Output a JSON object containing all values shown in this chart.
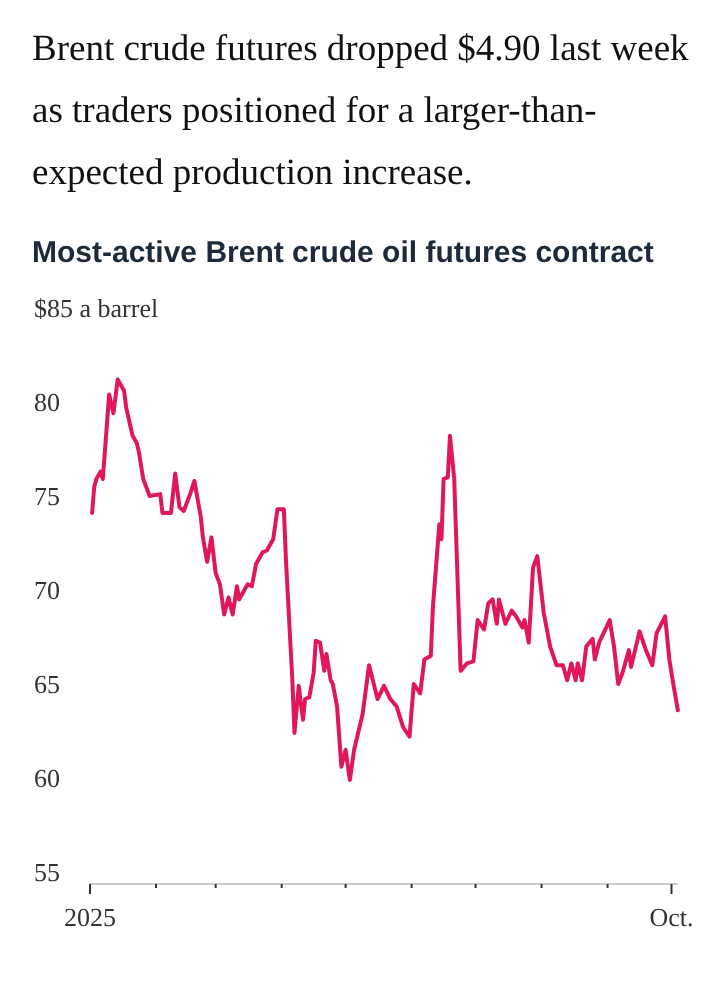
{
  "chart_data": {
    "type": "line",
    "title": "Brent crude futures dropped $4.90 last week as traders positioned for a larger-than-expected production increase.",
    "subtitle": "Most-active Brent crude oil futures contract",
    "x": [
      "2025-01-02",
      "2025-01-03",
      "2025-01-04",
      "2025-01-06",
      "2025-01-07",
      "2025-01-10",
      "2025-01-12",
      "2025-01-14",
      "2025-01-17",
      "2025-01-18",
      "2025-01-20",
      "2025-01-21",
      "2025-01-23",
      "2025-01-24",
      "2025-01-26",
      "2025-01-29",
      "2025-02-03",
      "2025-02-04",
      "2025-02-08",
      "2025-02-10",
      "2025-02-12",
      "2025-02-14",
      "2025-02-17",
      "2025-02-19",
      "2025-02-22",
      "2025-02-23",
      "2025-02-25",
      "2025-02-27",
      "2025-03-01",
      "2025-03-03",
      "2025-03-05",
      "2025-03-07",
      "2025-03-09",
      "2025-03-11",
      "2025-03-12",
      "2025-03-16",
      "2025-03-18",
      "2025-03-20",
      "2025-03-23",
      "2025-03-25",
      "2025-03-28",
      "2025-03-30",
      "2025-04-02",
      "2025-04-03",
      "2025-04-06",
      "2025-04-07",
      "2025-04-09",
      "2025-04-11",
      "2025-04-12",
      "2025-04-14",
      "2025-04-16",
      "2025-04-17",
      "2025-04-19",
      "2025-04-21",
      "2025-04-22",
      "2025-04-24",
      "2025-04-25",
      "2025-04-27",
      "2025-04-29",
      "2025-05-01",
      "2025-05-03",
      "2025-05-05",
      "2025-05-09",
      "2025-05-12",
      "2025-05-16",
      "2025-05-19",
      "2025-05-22",
      "2025-05-25",
      "2025-05-28",
      "2025-05-31",
      "2025-06-02",
      "2025-06-05",
      "2025-06-07",
      "2025-06-10",
      "2025-06-11",
      "2025-06-14",
      "2025-06-15",
      "2025-06-16",
      "2025-06-18",
      "2025-06-19",
      "2025-06-21",
      "2025-06-24",
      "2025-06-27",
      "2025-06-30",
      "2025-07-02",
      "2025-07-05",
      "2025-07-07",
      "2025-07-09",
      "2025-07-11",
      "2025-07-12",
      "2025-07-15",
      "2025-07-18",
      "2025-07-20",
      "2025-07-23",
      "2025-07-24",
      "2025-07-26",
      "2025-07-28",
      "2025-07-30",
      "2025-08-02",
      "2025-08-05",
      "2025-08-08",
      "2025-08-11",
      "2025-08-13",
      "2025-08-15",
      "2025-08-17",
      "2025-08-18",
      "2025-08-20",
      "2025-08-22",
      "2025-08-25",
      "2025-08-26",
      "2025-08-28",
      "2025-09-02",
      "2025-09-04",
      "2025-09-06",
      "2025-09-08",
      "2025-09-11",
      "2025-09-12",
      "2025-09-16",
      "2025-09-19",
      "2025-09-22",
      "2025-09-24",
      "2025-09-28",
      "2025-09-30",
      "2025-10-02",
      "2025-10-04"
    ],
    "series": [
      {
        "color": "#e0185a",
        "values": [
          74.1,
          75.5,
          75.9,
          76.3,
          75.9,
          80.4,
          79.4,
          81.2,
          80.6,
          79.7,
          78.7,
          78.2,
          77.8,
          77.3,
          75.9,
          75.0,
          75.1,
          74.1,
          74.1,
          76.2,
          74.4,
          74.2,
          75.1,
          75.8,
          73.9,
          72.8,
          71.5,
          72.8,
          70.9,
          70.3,
          68.7,
          69.6,
          68.7,
          70.2,
          69.5,
          70.3,
          70.2,
          71.4,
          72.0,
          72.1,
          72.7,
          74.3,
          74.3,
          71.6,
          65.2,
          62.4,
          64.9,
          63.1,
          64.2,
          64.3,
          65.6,
          67.3,
          67.2,
          65.7,
          66.6,
          65.2,
          65.0,
          63.8,
          60.6,
          61.5,
          59.9,
          61.5,
          63.4,
          66.0,
          64.2,
          64.9,
          64.2,
          63.8,
          62.7,
          62.2,
          65.0,
          64.5,
          66.3,
          66.5,
          69.1,
          73.5,
          72.7,
          75.9,
          76.0,
          78.2,
          75.9,
          65.7,
          66.1,
          66.2,
          68.4,
          67.9,
          69.3,
          69.5,
          68.2,
          69.5,
          68.2,
          68.9,
          68.6,
          68.0,
          68.4,
          67.2,
          71.2,
          71.8,
          68.8,
          67.0,
          66.0,
          66.0,
          65.2,
          66.1,
          65.2,
          66.1,
          65.2,
          67.0,
          67.4,
          66.3,
          67.2,
          68.4,
          67.0,
          65.0,
          65.6,
          66.8,
          65.9,
          67.8,
          66.8,
          66.0,
          67.7,
          68.6,
          66.3,
          64.9,
          63.6
        ]
      }
    ],
    "xlim": [
      "2025-01-01",
      "2025-10-04"
    ],
    "xticks": [
      {
        "value": "2025-01",
        "label": "2025"
      },
      {
        "value": "2025-02",
        "label": null
      },
      {
        "value": "2025-03",
        "label": null
      },
      {
        "value": "2025-04",
        "label": null
      },
      {
        "value": "2025-05",
        "label": null
      },
      {
        "value": "2025-06",
        "label": null
      },
      {
        "value": "2025-07",
        "label": null
      },
      {
        "value": "2025-08",
        "label": null
      },
      {
        "value": "2025-09",
        "label": null
      },
      {
        "value": "2025-10",
        "label": "Oct."
      }
    ],
    "ylim": [
      55,
      85
    ],
    "yticks": [
      55,
      60,
      65,
      70,
      75,
      80,
      {
        "value": 85,
        "label": "$85 a barrel"
      }
    ]
  }
}
